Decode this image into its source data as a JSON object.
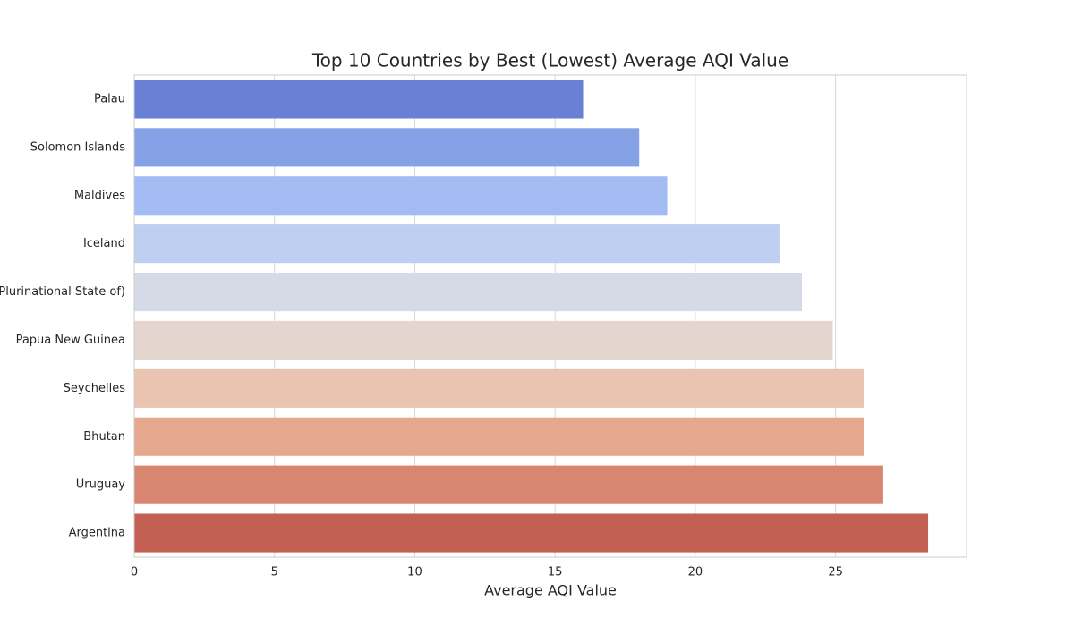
{
  "chart_data": {
    "type": "barh",
    "title": "Top 10 Countries by Best (Lowest) Average AQI Value",
    "xlabel": "Average AQI Value",
    "categories": [
      "Palau",
      "Solomon Islands",
      "Maldives",
      "Iceland",
      "Bolivia (Plurinational State of)",
      "Papua New Guinea",
      "Seychelles",
      "Bhutan",
      "Uruguay",
      "Argentina"
    ],
    "values": [
      16,
      18,
      19,
      23,
      23.8,
      24.9,
      26,
      26,
      26.7,
      28.3
    ],
    "colors": [
      "#6a80d4",
      "#86a2e6",
      "#a2bcf3",
      "#bdd0f1",
      "#d4dbe6",
      "#e4d6ce",
      "#eac4b0",
      "#e5a88f",
      "#d98671",
      "#c45f54"
    ],
    "xlim": [
      0,
      29.67
    ],
    "xticks": [
      0,
      5,
      10,
      15,
      20,
      25
    ],
    "grid": true
  }
}
